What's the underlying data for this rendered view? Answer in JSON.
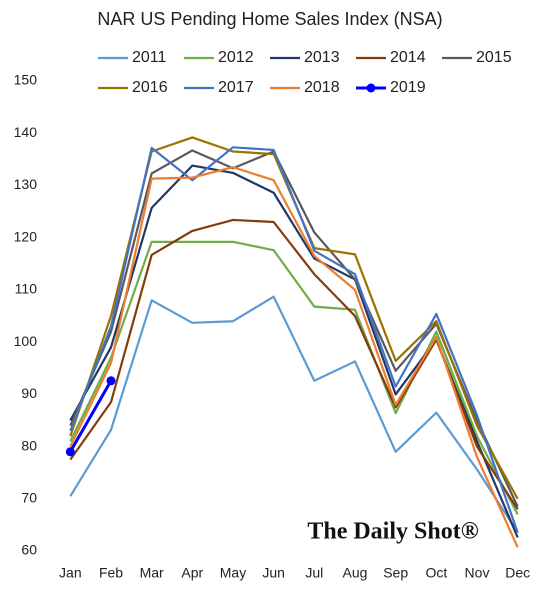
{
  "chart_data": {
    "type": "line",
    "title": "NAR US Pending Home Sales Index (NSA)",
    "watermark": "The Daily Shot®",
    "categories": [
      "Jan",
      "Feb",
      "Mar",
      "Apr",
      "May",
      "Jun",
      "Jul",
      "Aug",
      "Sep",
      "Oct",
      "Nov",
      "Dec"
    ],
    "ylim": [
      60,
      150
    ],
    "yticks": [
      60,
      70,
      80,
      90,
      100,
      110,
      120,
      130,
      140,
      150
    ],
    "grid": false,
    "legend": "top",
    "series": [
      {
        "name": "2011",
        "color": "#5b9bd5",
        "values": [
          70.5,
          83.2,
          108,
          103.7,
          104,
          108.7,
          92.6,
          96.3,
          79,
          86.5,
          75.6,
          63.6
        ]
      },
      {
        "name": "2012",
        "color": "#70ad47",
        "values": [
          81,
          97,
          119.2,
          119.2,
          119.2,
          117.6,
          106.8,
          106.2,
          86.4,
          102,
          82,
          67
        ]
      },
      {
        "name": "2013",
        "color": "#203864",
        "values": [
          85,
          99,
          125.7,
          133.8,
          132.4,
          128.6,
          116,
          112,
          90,
          100.5,
          81,
          62.6
        ]
      },
      {
        "name": "2014",
        "color": "#843c0c",
        "values": [
          77.5,
          88.5,
          116.7,
          121.3,
          123.4,
          123,
          113,
          105,
          87.5,
          100.5,
          80,
          68
        ]
      },
      {
        "name": "2015",
        "color": "#595959",
        "values": [
          84,
          102,
          132.3,
          136.7,
          133.3,
          136.5,
          121,
          112,
          94.5,
          103.5,
          85,
          68.5
        ]
      },
      {
        "name": "2016",
        "color": "#997300",
        "values": [
          82,
          105,
          136.5,
          139.2,
          136.5,
          136,
          118,
          116.8,
          96.4,
          104,
          84,
          70
        ]
      },
      {
        "name": "2017",
        "color": "#4472c4",
        "values": [
          83,
          103,
          137.2,
          131,
          137.3,
          136.8,
          117.5,
          113,
          91.5,
          105.4,
          86,
          63.5
        ]
      },
      {
        "name": "2018",
        "color": "#ed7d31",
        "values": [
          80,
          96,
          131.3,
          131.5,
          133.5,
          131,
          116.5,
          110,
          88,
          101,
          78,
          60.7
        ]
      },
      {
        "name": "2019",
        "color": "#0000ff",
        "marker": true,
        "values": [
          79,
          92.6,
          null,
          null,
          null,
          null,
          null,
          null,
          null,
          null,
          null,
          null
        ]
      }
    ]
  }
}
